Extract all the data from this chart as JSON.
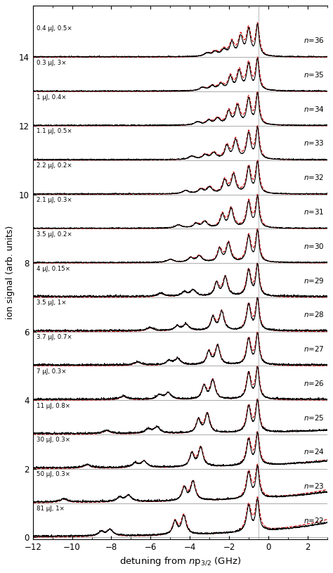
{
  "n_values": [
    22,
    23,
    24,
    25,
    26,
    27,
    28,
    29,
    30,
    31,
    32,
    33,
    34,
    35,
    36
  ],
  "labels": [
    "81 μJ, 1×",
    "50 μJ, 0.3×",
    "30 μJ, 0.3×",
    "11 μJ, 0.8×",
    "7 μJ, 0.3×",
    "3.7 μJ, 0.7×",
    "3.5 μJ, 1×",
    "4 μJ, 0.15×",
    "3.5 μJ, 0.2×",
    "2.1 μJ, 0.3×",
    "2.2 μJ, 0.2×",
    "1.1 μJ, 0.5×",
    "1 μJ, 0.4×",
    "0.3 μJ, 3×",
    "0.4 μJ, 0.5×"
  ],
  "offsets": [
    0.0,
    1.0,
    2.0,
    3.0,
    4.0,
    5.0,
    6.0,
    7.0,
    8.0,
    9.0,
    10.0,
    11.0,
    12.0,
    13.0,
    14.0
  ],
  "xmin": -12,
  "xmax": 3,
  "ymin": -0.05,
  "ymax": 15.5,
  "xlabel": "detuning from $n$p$_{3/2}$ (GHz)",
  "ylabel": "ion signal (arb. units)",
  "hline_color": "#888888",
  "vline_color": "#999999",
  "black_color": "#000000",
  "red_color": "#cc0000",
  "bg_color": "#ffffff",
  "vline_x": -0.5,
  "yticks": [
    0,
    2,
    4,
    6,
    8,
    10,
    12,
    14
  ]
}
